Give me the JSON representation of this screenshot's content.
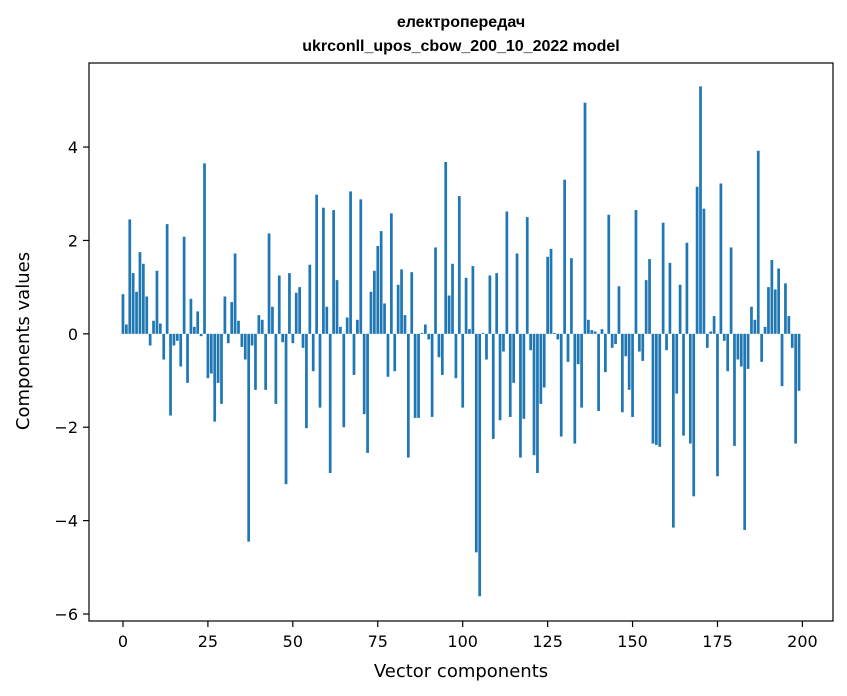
{
  "chart_data": {
    "type": "bar",
    "title_line1": "електропередач",
    "title_line2": "ukrconll_upos_cbow_200_10_2022 model",
    "xlabel": "Vector components",
    "ylabel": "Components values",
    "xlim": [
      -10,
      209
    ],
    "ylim": [
      -6.15,
      5.8
    ],
    "xticks": [
      0,
      25,
      50,
      75,
      100,
      125,
      150,
      175,
      200
    ],
    "yticks": [
      -6,
      -4,
      -2,
      0,
      2,
      4
    ],
    "ytick_labels": [
      "−6",
      "−4",
      "−2",
      "0",
      "2",
      "4"
    ],
    "grid": false,
    "bar_color": "#1f77b4",
    "x": [
      0,
      1,
      2,
      3,
      4,
      5,
      6,
      7,
      8,
      9,
      10,
      11,
      12,
      13,
      14,
      15,
      16,
      17,
      18,
      19,
      20,
      21,
      22,
      23,
      24,
      25,
      26,
      27,
      28,
      29,
      30,
      31,
      32,
      33,
      34,
      35,
      36,
      37,
      38,
      39,
      40,
      41,
      42,
      43,
      44,
      45,
      46,
      47,
      48,
      49,
      50,
      51,
      52,
      53,
      54,
      55,
      56,
      57,
      58,
      59,
      60,
      61,
      62,
      63,
      64,
      65,
      66,
      67,
      68,
      69,
      70,
      71,
      72,
      73,
      74,
      75,
      76,
      77,
      78,
      79,
      80,
      81,
      82,
      83,
      84,
      85,
      86,
      87,
      88,
      89,
      90,
      91,
      92,
      93,
      94,
      95,
      96,
      97,
      98,
      99,
      100,
      101,
      102,
      103,
      104,
      105,
      106,
      107,
      108,
      109,
      110,
      111,
      112,
      113,
      114,
      115,
      116,
      117,
      118,
      119,
      120,
      121,
      122,
      123,
      124,
      125,
      126,
      127,
      128,
      129,
      130,
      131,
      132,
      133,
      134,
      135,
      136,
      137,
      138,
      139,
      140,
      141,
      142,
      143,
      144,
      145,
      146,
      147,
      148,
      149,
      150,
      151,
      152,
      153,
      154,
      155,
      156,
      157,
      158,
      159,
      160,
      161,
      162,
      163,
      164,
      165,
      166,
      167,
      168,
      169,
      170,
      171,
      172,
      173,
      174,
      175,
      176,
      177,
      178,
      179,
      180,
      181,
      182,
      183,
      184,
      185,
      186,
      187,
      188,
      189,
      190,
      191,
      192,
      193,
      194,
      195,
      196,
      197,
      198,
      199
    ],
    "values": [
      0.85,
      0.2,
      2.45,
      1.3,
      0.9,
      1.75,
      1.5,
      0.8,
      -0.25,
      0.28,
      1.35,
      0.22,
      -0.55,
      2.35,
      -1.75,
      -0.25,
      -0.15,
      -0.7,
      2.08,
      -1.05,
      0.75,
      0.15,
      0.48,
      -0.05,
      3.65,
      -0.95,
      -0.85,
      -1.88,
      -1.05,
      -1.5,
      0.8,
      -0.2,
      0.68,
      1.72,
      0.28,
      -0.28,
      -0.55,
      -4.45,
      -0.25,
      -1.2,
      0.4,
      0.3,
      -1.2,
      2.15,
      0.58,
      -1.5,
      1.25,
      -0.18,
      -3.22,
      1.3,
      -0.2,
      0.88,
      1.0,
      -0.3,
      -2.02,
      1.48,
      -0.8,
      2.98,
      -1.58,
      2.7,
      0.58,
      -2.98,
      2.65,
      1.15,
      0.15,
      -2.0,
      0.35,
      3.05,
      -0.88,
      0.3,
      2.88,
      -1.72,
      -2.55,
      0.9,
      1.35,
      1.88,
      2.2,
      0.65,
      -0.92,
      2.58,
      -0.8,
      1.05,
      1.38,
      0.4,
      -2.65,
      1.32,
      -1.8,
      -1.8,
      0.02,
      0.2,
      -0.12,
      -1.78,
      1.85,
      -0.5,
      -0.88,
      3.68,
      0.82,
      1.5,
      -0.95,
      2.95,
      -1.58,
      1.2,
      0.1,
      1.45,
      -4.68,
      -5.62,
      0.02,
      -0.55,
      1.25,
      -2.25,
      1.3,
      -1.85,
      -0.38,
      2.62,
      -1.78,
      -1.05,
      1.72,
      -2.65,
      -1.82,
      2.5,
      -0.35,
      -2.6,
      -2.98,
      -1.5,
      -1.15,
      1.65,
      1.82,
      0.02,
      -0.12,
      -2.2,
      3.3,
      -0.6,
      1.62,
      -2.35,
      -0.65,
      -1.58,
      4.95,
      0.3,
      0.08,
      0.05,
      -1.65,
      0.1,
      -0.82,
      2.55,
      -0.3,
      -0.22,
      1.02,
      -1.68,
      -0.48,
      -1.2,
      -1.78,
      2.65,
      -0.38,
      -0.58,
      1.15,
      1.6,
      -2.35,
      -2.38,
      -2.42,
      2.38,
      -0.35,
      1.52,
      -4.15,
      -1.28,
      1.05,
      -2.18,
      1.95,
      -2.35,
      -3.48,
      3.15,
      5.3,
      2.68,
      -0.3,
      0.05,
      0.38,
      -3.05,
      3.22,
      -0.15,
      -0.8,
      1.85,
      -2.4,
      -0.55,
      -0.7,
      -4.2,
      -0.75,
      0.58,
      0.3,
      3.92,
      -0.6,
      0.15,
      1.0,
      1.58,
      0.95,
      1.4,
      -1.12,
      1.08,
      0.38,
      -0.3,
      -2.35,
      -1.22
    ]
  }
}
